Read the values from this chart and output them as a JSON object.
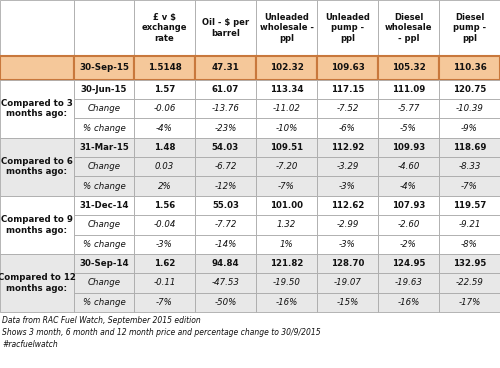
{
  "col_headers": [
    "",
    "",
    "£ v $\nexchange\nrate",
    "Oil - $ per\nbarrel",
    "Unleaded\nwholesale -\nppl",
    "Unleaded\npump -\nppl",
    "Diesel\nwholesale\n- ppl",
    "Diesel\npump -\nppl"
  ],
  "highlight_row": {
    "label": "30-Sep-15",
    "values": [
      "1.5148",
      "47.31",
      "102.32",
      "109.63",
      "105.32",
      "110.36"
    ],
    "bg_color": "#f5c89a",
    "border_color": "#c8783c"
  },
  "sections": [
    {
      "left_label": "Compared to 3\nmonths ago:",
      "rows": [
        {
          "label": "30-Jun-15",
          "values": [
            "1.57",
            "61.07",
            "113.34",
            "117.15",
            "111.09",
            "120.75"
          ],
          "bold": true,
          "italic": false
        },
        {
          "label": "Change",
          "values": [
            "-0.06",
            "-13.76",
            "-11.02",
            "-7.52",
            "-5.77",
            "-10.39"
          ],
          "bold": false,
          "italic": true
        },
        {
          "label": "% change",
          "values": [
            "-4%",
            "-23%",
            "-10%",
            "-6%",
            "-5%",
            "-9%"
          ],
          "bold": false,
          "italic": true
        }
      ],
      "bg_color": "#ffffff"
    },
    {
      "left_label": "Compared to 6\nmonths ago:",
      "rows": [
        {
          "label": "31-Mar-15",
          "values": [
            "1.48",
            "54.03",
            "109.51",
            "112.92",
            "109.93",
            "118.69"
          ],
          "bold": true,
          "italic": false
        },
        {
          "label": "Change",
          "values": [
            "0.03",
            "-6.72",
            "-7.20",
            "-3.29",
            "-4.60",
            "-8.33"
          ],
          "bold": false,
          "italic": true
        },
        {
          "label": "% change",
          "values": [
            "2%",
            "-12%",
            "-7%",
            "-3%",
            "-4%",
            "-7%"
          ],
          "bold": false,
          "italic": true
        }
      ],
      "bg_color": "#e8e8e8"
    },
    {
      "left_label": "Compared to 9\nmonths ago:",
      "rows": [
        {
          "label": "31-Dec-14",
          "values": [
            "1.56",
            "55.03",
            "101.00",
            "112.62",
            "107.93",
            "119.57"
          ],
          "bold": true,
          "italic": false
        },
        {
          "label": "Change",
          "values": [
            "-0.04",
            "-7.72",
            "1.32",
            "-2.99",
            "-2.60",
            "-9.21"
          ],
          "bold": false,
          "italic": true
        },
        {
          "label": "% change",
          "values": [
            "-3%",
            "-14%",
            "1%",
            "-3%",
            "-2%",
            "-8%"
          ],
          "bold": false,
          "italic": true
        }
      ],
      "bg_color": "#ffffff"
    },
    {
      "left_label": "Compared to 12\nmonths ago:",
      "rows": [
        {
          "label": "30-Sep-14",
          "values": [
            "1.62",
            "94.84",
            "121.82",
            "128.70",
            "124.95",
            "132.95"
          ],
          "bold": true,
          "italic": false
        },
        {
          "label": "Change",
          "values": [
            "-0.11",
            "-47.53",
            "-19.50",
            "-19.07",
            "-19.63",
            "-22.59"
          ],
          "bold": false,
          "italic": true
        },
        {
          "label": "% change",
          "values": [
            "-7%",
            "-50%",
            "-16%",
            "-15%",
            "-16%",
            "-17%"
          ],
          "bold": false,
          "italic": true
        }
      ],
      "bg_color": "#e8e8e8"
    }
  ],
  "footnotes": [
    "Data from RAC Fuel Watch, September 2015 edition",
    "Shows 3 month, 6 month and 12 month price and percentage change to 30/9/2015",
    "#racfuelwatch"
  ],
  "grid_color": "#aaaaaa",
  "highlight_border": "#c8783c"
}
